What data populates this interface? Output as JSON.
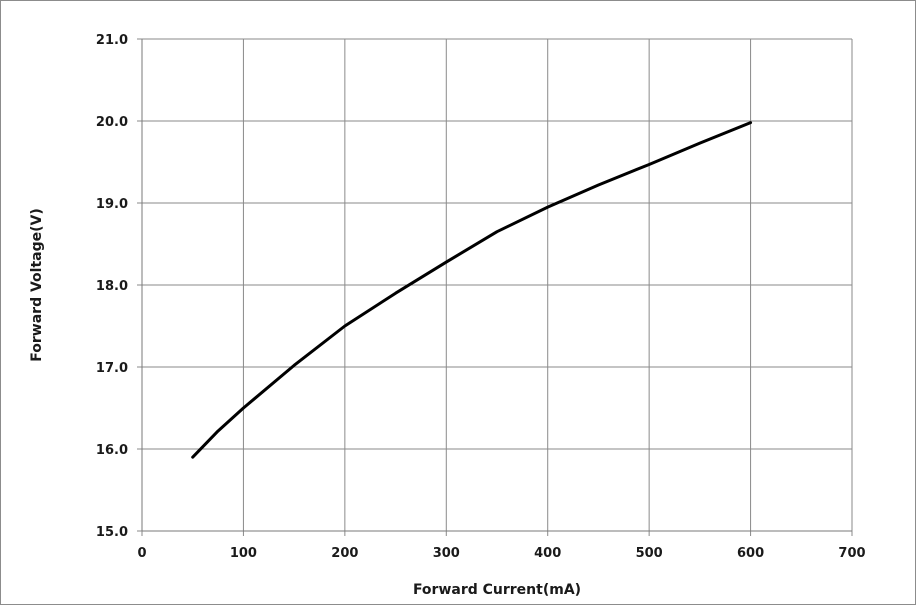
{
  "chart_data": {
    "type": "line",
    "title": "",
    "xlabel": "Forward Current(mA)",
    "ylabel": "Forward Voltage(V)",
    "xlim": [
      0,
      700
    ],
    "ylim": [
      15.0,
      21.0
    ],
    "x_ticks": [
      0,
      100,
      200,
      300,
      400,
      500,
      600,
      700
    ],
    "x_tick_labels": [
      "0",
      "100",
      "200",
      "300",
      "400",
      "500",
      "600",
      "700"
    ],
    "y_ticks": [
      15.0,
      16.0,
      17.0,
      18.0,
      19.0,
      20.0,
      21.0
    ],
    "y_tick_labels": [
      "15.0",
      "16.0",
      "17.0",
      "18.0",
      "19.0",
      "20.0",
      "21.0"
    ],
    "grid": true,
    "legend": "none",
    "series": [
      {
        "color": "#000000",
        "x": [
          50,
          75,
          100,
          150,
          200,
          250,
          300,
          350,
          400,
          450,
          500,
          550,
          600
        ],
        "y": [
          15.9,
          16.22,
          16.5,
          17.02,
          17.5,
          17.9,
          18.28,
          18.65,
          18.95,
          19.22,
          19.47,
          19.73,
          19.98
        ]
      }
    ]
  }
}
